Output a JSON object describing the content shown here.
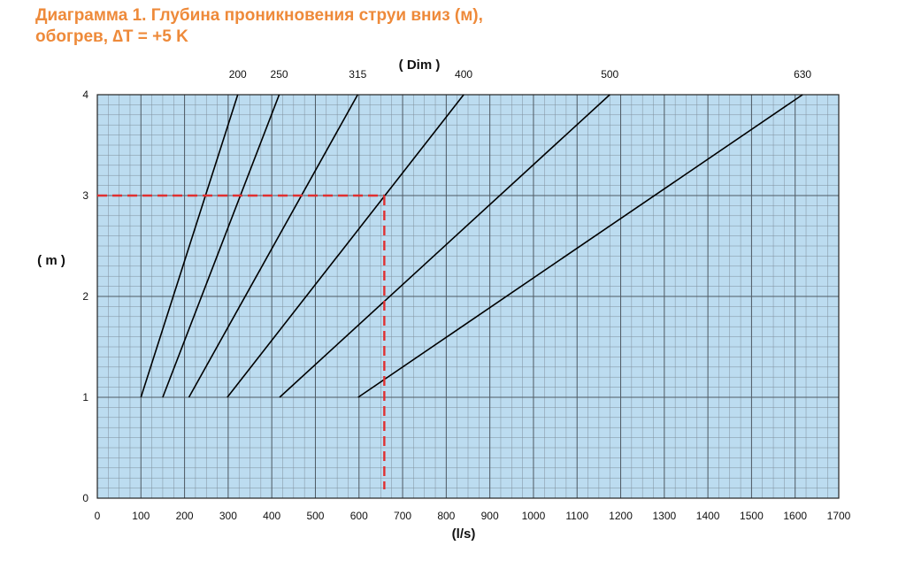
{
  "title_line1": "Диаграмма 1. Глубина проникновения струи вниз (м),",
  "title_line2": "обогрев, ∆T = +5 K",
  "colors": {
    "title": "#ee8a3a",
    "plot_bg": "#bcdcf0",
    "guide": "#e03030"
  },
  "chart_data": {
    "type": "line",
    "xlabel": "(l/s)",
    "ylabel": "( m )",
    "top_axis_label": "( Dim )",
    "xlim": [
      0,
      1700
    ],
    "ylim": [
      0,
      4
    ],
    "x_ticks": [
      0,
      100,
      200,
      300,
      400,
      500,
      600,
      700,
      800,
      900,
      1000,
      1100,
      1200,
      1300,
      1400,
      1500,
      1600,
      1700
    ],
    "y_ticks": [
      0,
      1,
      2,
      3,
      4
    ],
    "grid": true,
    "series": [
      {
        "name": "200",
        "points": [
          [
            100,
            1
          ],
          [
            322,
            4
          ]
        ]
      },
      {
        "name": "250",
        "points": [
          [
            150,
            1
          ],
          [
            417,
            4
          ]
        ]
      },
      {
        "name": "315",
        "points": [
          [
            210,
            1
          ],
          [
            597,
            4
          ]
        ]
      },
      {
        "name": "400",
        "points": [
          [
            298,
            1
          ],
          [
            840,
            4
          ]
        ]
      },
      {
        "name": "500",
        "points": [
          [
            418,
            1
          ],
          [
            1175,
            4
          ]
        ]
      },
      {
        "name": "630",
        "points": [
          [
            598,
            1
          ],
          [
            1617,
            4
          ]
        ]
      }
    ],
    "guide": {
      "x": 658,
      "y": 3,
      "style": "dashed"
    }
  }
}
